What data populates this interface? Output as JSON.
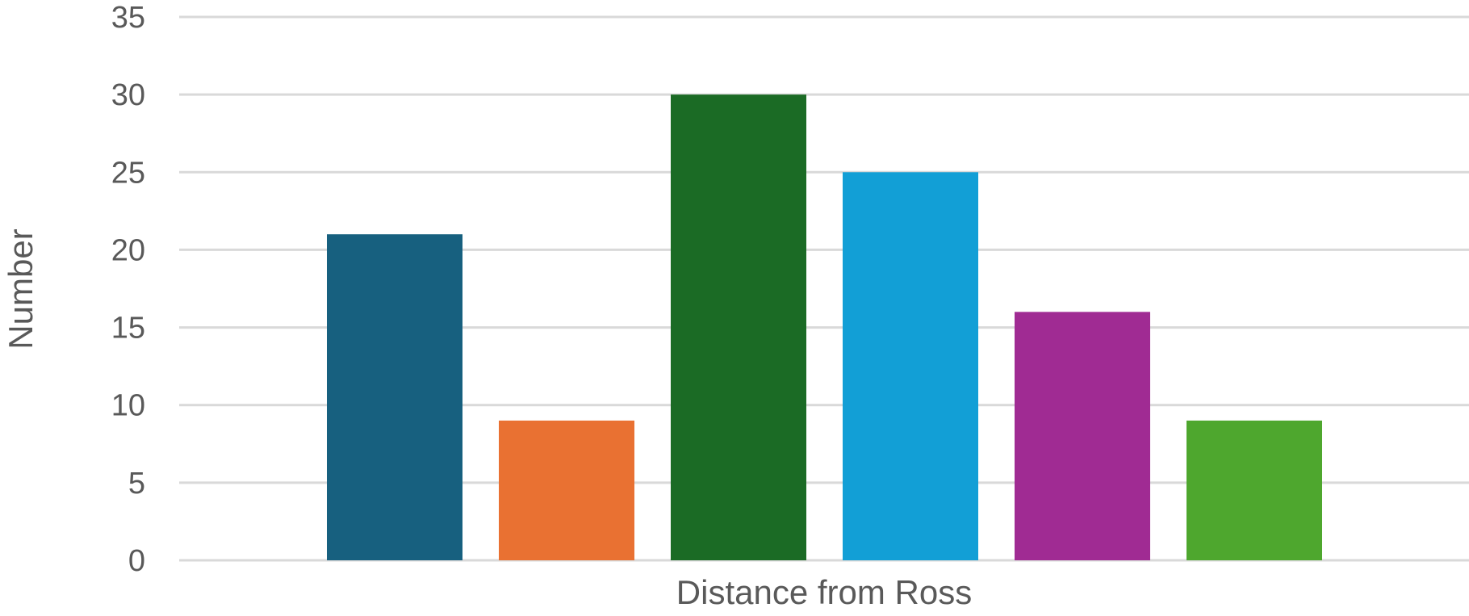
{
  "chart_data": {
    "type": "bar",
    "title": "",
    "xlabel": "Distance from Ross",
    "ylabel": "Number",
    "ylim": [
      0,
      35
    ],
    "yticks": [
      0,
      5,
      10,
      15,
      20,
      25,
      30,
      35
    ],
    "grid": true,
    "legend": "none",
    "series": [
      {
        "values": [
          21,
          9,
          30,
          25,
          16,
          9
        ],
        "colors": [
          "#17607f",
          "#e97132",
          "#1b6b25",
          "#129fd6",
          "#a02b93",
          "#4ea72e"
        ]
      }
    ],
    "gridline_color": "#d9d9d9"
  }
}
